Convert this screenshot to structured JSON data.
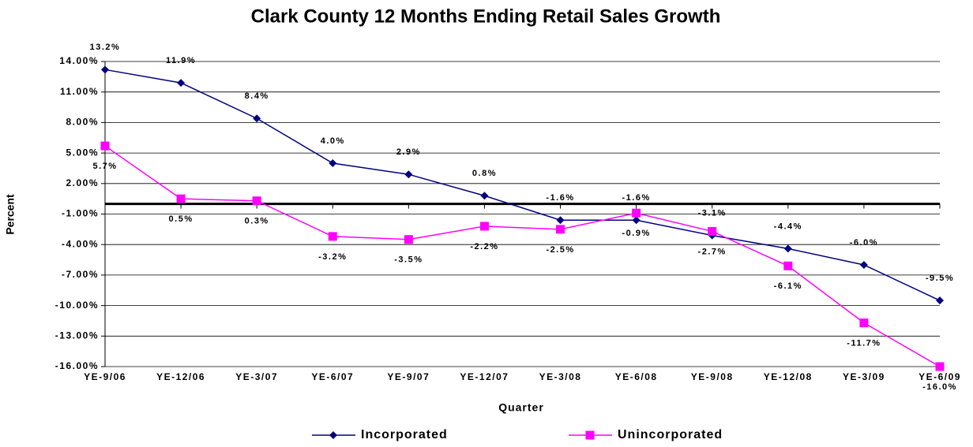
{
  "chart_data": {
    "type": "line",
    "title": "Clark County 12 Months Ending Retail Sales Growth",
    "x_label": "Quarter",
    "y_label": "Percent",
    "categories": [
      "YE-9/06",
      "YE-12/06",
      "YE-3/07",
      "YE-6/07",
      "YE-9/07",
      "YE-12/07",
      "YE-3/08",
      "YE-6/08",
      "YE-9/08",
      "YE-12/08",
      "YE-3/09",
      "YE-6/09"
    ],
    "series": [
      {
        "name": "Incorporated",
        "color": "#000080",
        "marker": "diamond",
        "values": [
          13.2,
          11.9,
          8.4,
          4.0,
          2.9,
          0.8,
          -1.6,
          -1.6,
          -3.1,
          -4.4,
          -6.0,
          -9.5
        ],
        "value_labels": [
          "13.2%",
          "11.9%",
          "8.4%",
          "4.0%",
          "2.9%",
          "0.8%",
          "-1.6%",
          "-1.6%",
          "-3.1%",
          "-4.4%",
          "-6.0%",
          "-9.5%"
        ]
      },
      {
        "name": "Unincorporated",
        "color": "#ff00ff",
        "marker": "square",
        "values": [
          5.7,
          0.5,
          0.3,
          -3.2,
          -3.5,
          -2.2,
          -2.5,
          -0.9,
          -2.7,
          -6.1,
          -11.7,
          -16.0
        ],
        "value_labels": [
          "5.7%",
          "0.5%",
          "0.3%",
          "-3.2%",
          "-3.5%",
          "-2.2%",
          "-2.5%",
          "-0.9%",
          "-2.7%",
          "-6.1%",
          "-11.7%",
          "-16.0%"
        ]
      }
    ],
    "ylim": [
      -16,
      14
    ],
    "yticks": [
      {
        "value": 14,
        "label": "14.00%"
      },
      {
        "value": 11,
        "label": "11.00%"
      },
      {
        "value": 8,
        "label": "8.00%"
      },
      {
        "value": 5,
        "label": "5.00%"
      },
      {
        "value": 2,
        "label": "2.00%"
      },
      {
        "value": -1,
        "label": "-1.00%"
      },
      {
        "value": -4,
        "label": "-4.00%"
      },
      {
        "value": -7,
        "label": "-7.00%"
      },
      {
        "value": -10,
        "label": "-10.00%"
      },
      {
        "value": -13,
        "label": "-13.00%"
      },
      {
        "value": -16,
        "label": "-16.00%"
      }
    ],
    "grid": true,
    "legend": "bottom"
  }
}
